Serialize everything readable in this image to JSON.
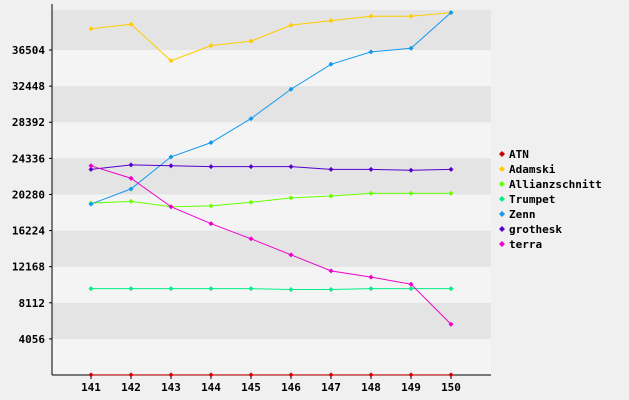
{
  "chart_data": {
    "type": "line",
    "title": "",
    "xlabel": "",
    "ylabel": "",
    "x": [
      "141",
      "142",
      "143",
      "144",
      "145",
      "146",
      "147",
      "148",
      "149",
      "150"
    ],
    "ylim": [
      0,
      41000
    ],
    "yticks": [
      "4056",
      "8112",
      "12168",
      "16224",
      "20280",
      "24336",
      "28392",
      "32448",
      "36504"
    ],
    "grid": "horizontal bands",
    "legend_position": "right",
    "colors": {
      "background": "#f0f0f0",
      "band_light": "#f4f4f4",
      "band_dark": "#e4e4e4",
      "axis": "#000000"
    },
    "series": [
      {
        "name": "ATN",
        "color": "#cc0000",
        "values": [
          20,
          20,
          10,
          10,
          10,
          10,
          10,
          10,
          10,
          10
        ]
      },
      {
        "name": "Adamski",
        "color": "#ffcc00",
        "values": [
          38900,
          39400,
          35300,
          37000,
          37500,
          39300,
          39800,
          40300,
          40300,
          40700
        ]
      },
      {
        "name": "Allianzschnitt",
        "color": "#66ff00",
        "values": [
          19300,
          19500,
          18900,
          19000,
          19400,
          19900,
          20100,
          20400,
          20400,
          20400
        ]
      },
      {
        "name": "Trumpet",
        "color": "#00ee88",
        "values": [
          9700,
          9700,
          9700,
          9700,
          9700,
          9600,
          9600,
          9700,
          9700,
          9700
        ]
      },
      {
        "name": "Zenn",
        "color": "#1199ee",
        "values": [
          19200,
          20900,
          24500,
          26100,
          28800,
          32100,
          34900,
          36300,
          36700,
          40700
        ]
      },
      {
        "name": "grothesk",
        "color": "#5500cc",
        "values": [
          23100,
          23600,
          23500,
          23400,
          23400,
          23400,
          23100,
          23100,
          23000,
          23100
        ]
      },
      {
        "name": "terra",
        "color": "#ee00cc",
        "values": [
          23500,
          22100,
          18900,
          17000,
          15300,
          13500,
          11700,
          11000,
          10200,
          5700
        ]
      }
    ]
  }
}
